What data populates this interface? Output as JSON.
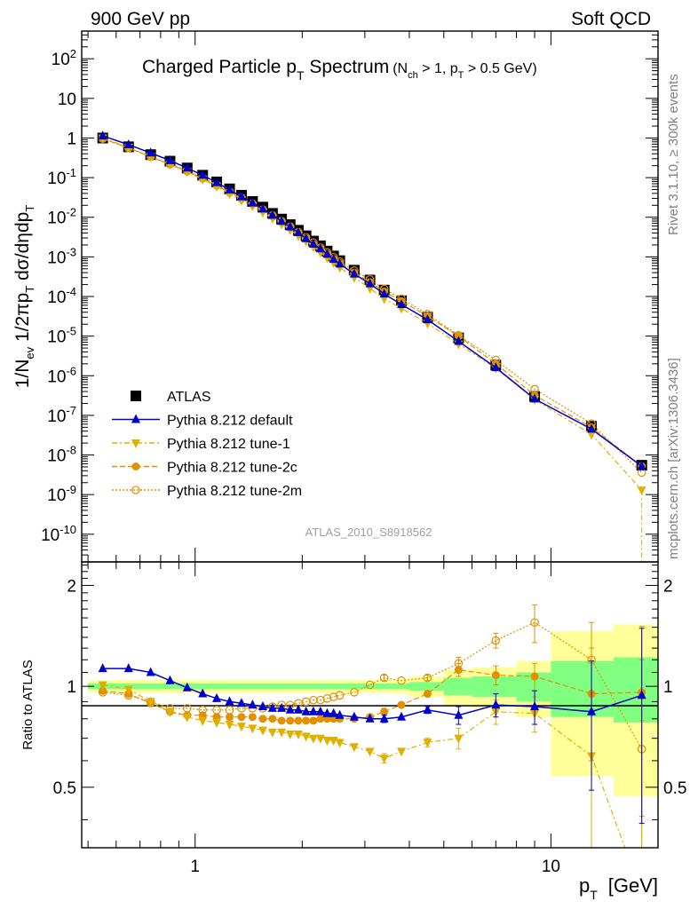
{
  "header": {
    "left": "900 GeV pp",
    "right": "Soft QCD"
  },
  "side_labels": {
    "rivet": "Rivet 3.1.10, ≥ 300k events",
    "source": "mcplots.cern.ch [arXiv:1306.3436]"
  },
  "chart_data": [
    {
      "type": "scatter",
      "panel": "main",
      "title": "Charged Particle pT Spectrum (Nch > 1, pT > 0.5 GeV)",
      "title_main": "Charged Particle p",
      "title_sub": "T",
      "title_after": " Spectrum",
      "title_cut": {
        "open": "(N",
        "nsub": "ch",
        "mid": " > 1, p",
        "psub": "T",
        "close": " > 0.5 GeV)"
      },
      "ylabel": "1/Nev 1/2πpT dσ/dηdpT",
      "xlabel": "pT [GeV]",
      "xscale": "log",
      "yscale": "log",
      "xlim": [
        0.48,
        20
      ],
      "ylim": [
        2e-11,
        500
      ],
      "y_tick_labels": [
        "10^-10",
        "10^-9",
        "10^-8",
        "10^-7",
        "10^-6",
        "10^-5",
        "10^-4",
        "10^-3",
        "10^-2",
        "10^-1",
        "1",
        "10",
        "10^2"
      ],
      "watermark": "ATLAS_2010_S8918562",
      "legend_position": "lower-left",
      "x": [
        0.55,
        0.65,
        0.75,
        0.85,
        0.95,
        1.05,
        1.15,
        1.25,
        1.35,
        1.45,
        1.55,
        1.65,
        1.75,
        1.85,
        1.95,
        2.05,
        2.15,
        2.25,
        2.35,
        2.45,
        2.55,
        2.8,
        3.1,
        3.4,
        3.8,
        4.5,
        5.5,
        7.0,
        9.0,
        13.0,
        18.0
      ],
      "series": [
        {
          "name": "ATLAS",
          "color": "#000000",
          "marker": "square",
          "values": [
            1.0,
            0.6,
            0.38,
            0.26,
            0.175,
            0.115,
            0.078,
            0.052,
            0.036,
            0.025,
            0.018,
            0.0125,
            0.009,
            0.0065,
            0.0047,
            0.0034,
            0.0025,
            0.0019,
            0.0014,
            0.00105,
            0.0008,
            0.00046,
            0.00026,
            0.000145,
            7.8e-05,
            3e-05,
            9e-06,
            1.85e-06,
            3e-07,
            5.3e-08,
            5.5e-09
          ]
        },
        {
          "name": "Pythia 8.212 default",
          "color": "#0000cc",
          "marker": "triangle-up",
          "values": [
            1.13,
            0.68,
            0.42,
            0.27,
            0.175,
            0.115,
            0.075,
            0.049,
            0.033,
            0.023,
            0.0162,
            0.0112,
            0.0079,
            0.0057,
            0.0041,
            0.0029,
            0.0021,
            0.0016,
            0.00117,
            0.00087,
            0.00066,
            0.00037,
            0.00021,
            0.000116,
            6.3e-05,
            2.6e-05,
            7.4e-06,
            1.6e-06,
            2.6e-07,
            4.5e-08,
            5.2e-09
          ]
        },
        {
          "name": "Pythia 8.212 tune-1",
          "color": "#e0b000",
          "marker": "triangle-down",
          "values": [
            1.0,
            0.58,
            0.34,
            0.215,
            0.14,
            0.091,
            0.06,
            0.039,
            0.027,
            0.019,
            0.0133,
            0.0094,
            0.0067,
            0.0048,
            0.0034,
            0.0025,
            0.0018,
            0.0013,
            0.00095,
            0.00071,
            0.00054,
            0.0003,
            0.00016,
            8.8e-05,
            5e-05,
            2.1e-05,
            6.3e-06,
            1.55e-06,
            2.5e-07,
            3.3e-08,
            1.3e-09
          ]
        },
        {
          "name": "Pythia 8.212 tune-2c",
          "color": "#e09000",
          "marker": "circle",
          "values": [
            0.97,
            0.56,
            0.335,
            0.215,
            0.143,
            0.094,
            0.063,
            0.042,
            0.029,
            0.021,
            0.015,
            0.0107,
            0.0076,
            0.0055,
            0.004,
            0.0029,
            0.0021,
            0.0016,
            0.00118,
            0.00089,
            0.00069,
            0.0004,
            0.00023,
            0.000133,
            7.6e-05,
            3.2e-05,
            1e-05,
            2e-06,
            3.2e-07,
            5e-08,
            5.2e-09
          ]
        },
        {
          "name": "Pythia 8.212 tune-2m",
          "color": "#e09000",
          "marker": "open-circle",
          "values": [
            0.96,
            0.56,
            0.34,
            0.22,
            0.15,
            0.098,
            0.066,
            0.044,
            0.031,
            0.022,
            0.0157,
            0.0112,
            0.008,
            0.0058,
            0.0042,
            0.0031,
            0.0023,
            0.0017,
            0.00129,
            0.00098,
            0.00076,
            0.00045,
            0.00027,
            0.000155,
            8.8e-05,
            3.6e-05,
            1.05e-05,
            2.5e-06,
            4.6e-07,
            6.2e-08,
            3.6e-09
          ]
        }
      ]
    },
    {
      "type": "line",
      "panel": "ratio",
      "ylabel": "Ratio to ATLAS",
      "xlabel": "pT [GeV]",
      "xlabel_main": "p",
      "xlabel_sub": "T",
      "xlabel_unit": "[GeV]",
      "xscale": "log",
      "xlim": [
        0.48,
        20
      ],
      "ylim": [
        0.33,
        2.35
      ],
      "y_tick_labels": [
        "0.5",
        "1",
        "2"
      ],
      "x_tick_labels": [
        "1",
        "10"
      ],
      "x": [
        0.55,
        0.65,
        0.75,
        0.85,
        0.95,
        1.05,
        1.15,
        1.25,
        1.35,
        1.45,
        1.55,
        1.65,
        1.75,
        1.85,
        1.95,
        2.05,
        2.15,
        2.25,
        2.35,
        2.45,
        2.55,
        2.8,
        3.1,
        3.4,
        3.8,
        4.5,
        5.5,
        7.0,
        9.0,
        13.0,
        18.0
      ],
      "data_band": {
        "edges": [
          0.5,
          0.6,
          0.7,
          0.8,
          0.9,
          1.0,
          1.1,
          1.2,
          1.3,
          1.4,
          1.5,
          1.6,
          1.7,
          1.8,
          1.9,
          2.0,
          2.1,
          2.2,
          2.3,
          2.4,
          2.5,
          2.6,
          3.0,
          3.2,
          3.6,
          4.0,
          5.0,
          6.0,
          8.0,
          10.0,
          15.0,
          20.0
        ],
        "stat_half": [
          0.02,
          0.02,
          0.02,
          0.02,
          0.02,
          0.02,
          0.02,
          0.02,
          0.02,
          0.02,
          0.02,
          0.02,
          0.02,
          0.02,
          0.02,
          0.02,
          0.02,
          0.02,
          0.02,
          0.02,
          0.02,
          0.02,
          0.02,
          0.02,
          0.02,
          0.03,
          0.06,
          0.07,
          0.1,
          0.19,
          0.22
        ],
        "total_half": [
          0.04,
          0.045,
          0.045,
          0.045,
          0.045,
          0.045,
          0.045,
          0.045,
          0.045,
          0.045,
          0.045,
          0.045,
          0.045,
          0.045,
          0.045,
          0.045,
          0.045,
          0.045,
          0.045,
          0.045,
          0.045,
          0.045,
          0.045,
          0.045,
          0.05,
          0.07,
          0.12,
          0.14,
          0.19,
          0.46,
          0.53
        ],
        "stat_color": "#80ff80",
        "total_color": "#ffff99"
      },
      "series": [
        {
          "name": "Pythia 8.212 default",
          "color": "#0000cc",
          "marker": "triangle-up",
          "style": "solid",
          "values": [
            1.13,
            1.13,
            1.1,
            1.04,
            0.99,
            0.95,
            0.92,
            0.9,
            0.89,
            0.88,
            0.87,
            0.86,
            0.86,
            0.85,
            0.85,
            0.84,
            0.84,
            0.84,
            0.83,
            0.83,
            0.82,
            0.81,
            0.8,
            0.8,
            0.81,
            0.85,
            0.82,
            0.88,
            0.87,
            0.84,
            0.94
          ]
        },
        {
          "name": "Pythia 8.212 tune-1",
          "color": "#e0b000",
          "marker": "triangle-down",
          "style": "dashdot",
          "values": [
            1.01,
            0.98,
            0.9,
            0.84,
            0.81,
            0.79,
            0.78,
            0.77,
            0.76,
            0.75,
            0.74,
            0.73,
            0.73,
            0.72,
            0.72,
            0.71,
            0.7,
            0.7,
            0.69,
            0.69,
            0.68,
            0.66,
            0.64,
            0.61,
            0.64,
            0.68,
            0.7,
            0.84,
            0.83,
            0.62,
            0.24
          ]
        },
        {
          "name": "Pythia 8.212 tune-2c",
          "color": "#e09000",
          "marker": "circle",
          "style": "dashed",
          "values": [
            0.97,
            0.95,
            0.89,
            0.84,
            0.82,
            0.82,
            0.81,
            0.81,
            0.81,
            0.81,
            0.8,
            0.8,
            0.79,
            0.79,
            0.79,
            0.79,
            0.79,
            0.8,
            0.8,
            0.8,
            0.8,
            0.8,
            0.81,
            0.84,
            0.88,
            0.95,
            1.12,
            1.08,
            1.07,
            0.95,
            0.96
          ]
        },
        {
          "name": "Pythia 8.212 tune-2m",
          "color": "#e09000",
          "marker": "open-circle",
          "style": "dotted",
          "values": [
            0.96,
            0.94,
            0.9,
            0.86,
            0.86,
            0.85,
            0.85,
            0.85,
            0.86,
            0.86,
            0.86,
            0.87,
            0.88,
            0.88,
            0.89,
            0.9,
            0.91,
            0.91,
            0.92,
            0.93,
            0.94,
            0.96,
            1.01,
            1.06,
            1.04,
            1.06,
            1.17,
            1.37,
            1.55,
            1.2,
            0.65
          ]
        }
      ]
    }
  ]
}
